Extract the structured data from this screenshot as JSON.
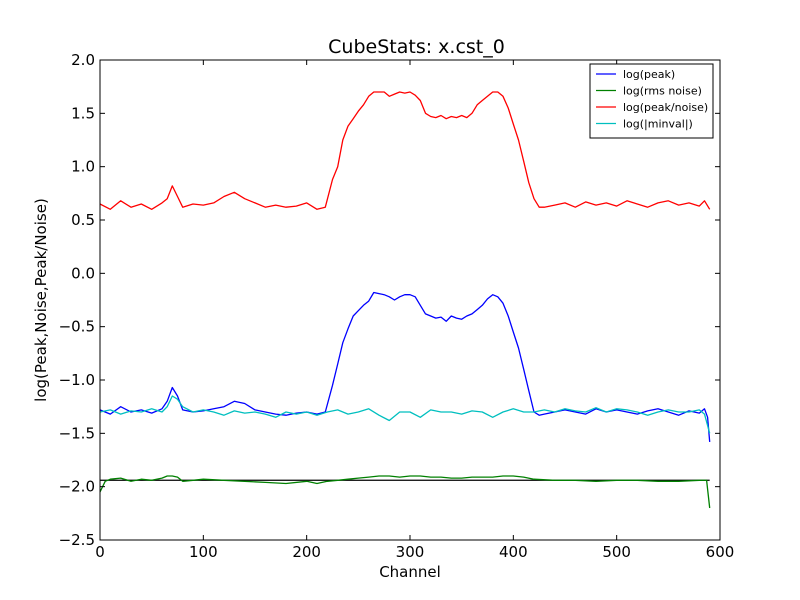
{
  "chart_data": {
    "type": "line",
    "title": "CubeStats: x.cst_0",
    "xlabel": "Channel",
    "ylabel": "log(Peak,Noise,Peak/Noise)",
    "xlim": [
      0,
      600
    ],
    "ylim": [
      -2.5,
      2.0
    ],
    "xticks": [
      0,
      100,
      200,
      300,
      400,
      500,
      600
    ],
    "yticks": [
      -2.5,
      -2.0,
      -1.5,
      -1.0,
      -0.5,
      0.0,
      0.5,
      1.0,
      1.5,
      2.0
    ],
    "xtick_labels": [
      "0",
      "100",
      "200",
      "300",
      "400",
      "500",
      "600"
    ],
    "ytick_labels": [
      "−2.5",
      "−2.0",
      "−1.5",
      "−1.0",
      "−0.5",
      "0.0",
      "0.5",
      "1.0",
      "1.5",
      "2.0"
    ],
    "grid": false,
    "legend_position": "top-right",
    "reference_lines": [
      {
        "y": -1.94,
        "x_range": [
          0,
          590
        ],
        "color": "#000000"
      }
    ],
    "series": [
      {
        "name": "log(peak)",
        "color": "#0000ff",
        "x": [
          0,
          10,
          20,
          30,
          40,
          50,
          60,
          65,
          70,
          75,
          80,
          90,
          100,
          110,
          120,
          130,
          140,
          150,
          160,
          170,
          180,
          190,
          200,
          210,
          218,
          225,
          230,
          235,
          240,
          245,
          250,
          255,
          260,
          265,
          270,
          275,
          280,
          285,
          290,
          295,
          300,
          305,
          310,
          315,
          320,
          325,
          330,
          335,
          340,
          345,
          350,
          355,
          360,
          365,
          370,
          375,
          380,
          385,
          390,
          395,
          400,
          405,
          410,
          415,
          420,
          425,
          430,
          440,
          450,
          460,
          470,
          480,
          490,
          500,
          510,
          520,
          530,
          540,
          550,
          560,
          570,
          580,
          585,
          588,
          590
        ],
        "y": [
          -1.28,
          -1.32,
          -1.25,
          -1.3,
          -1.28,
          -1.31,
          -1.27,
          -1.2,
          -1.07,
          -1.15,
          -1.28,
          -1.3,
          -1.29,
          -1.27,
          -1.25,
          -1.2,
          -1.22,
          -1.28,
          -1.3,
          -1.32,
          -1.33,
          -1.31,
          -1.3,
          -1.32,
          -1.3,
          -1.05,
          -0.85,
          -0.65,
          -0.52,
          -0.4,
          -0.35,
          -0.3,
          -0.26,
          -0.18,
          -0.19,
          -0.2,
          -0.22,
          -0.25,
          -0.22,
          -0.2,
          -0.2,
          -0.22,
          -0.3,
          -0.38,
          -0.4,
          -0.42,
          -0.41,
          -0.45,
          -0.4,
          -0.42,
          -0.43,
          -0.4,
          -0.38,
          -0.34,
          -0.3,
          -0.24,
          -0.2,
          -0.22,
          -0.28,
          -0.4,
          -0.55,
          -0.7,
          -0.9,
          -1.1,
          -1.3,
          -1.33,
          -1.32,
          -1.3,
          -1.28,
          -1.3,
          -1.32,
          -1.27,
          -1.3,
          -1.28,
          -1.3,
          -1.32,
          -1.29,
          -1.27,
          -1.3,
          -1.33,
          -1.29,
          -1.31,
          -1.27,
          -1.35,
          -1.58
        ]
      },
      {
        "name": "log(rms noise)",
        "color": "#008000",
        "x": [
          0,
          5,
          10,
          20,
          30,
          40,
          50,
          60,
          65,
          70,
          75,
          80,
          90,
          100,
          120,
          140,
          160,
          180,
          200,
          210,
          220,
          230,
          240,
          250,
          260,
          270,
          280,
          290,
          300,
          310,
          320,
          330,
          340,
          350,
          360,
          370,
          380,
          390,
          400,
          410,
          420,
          440,
          460,
          480,
          500,
          520,
          540,
          560,
          580,
          587,
          590
        ],
        "y": [
          -2.05,
          -1.95,
          -1.93,
          -1.92,
          -1.95,
          -1.93,
          -1.94,
          -1.92,
          -1.9,
          -1.9,
          -1.91,
          -1.95,
          -1.94,
          -1.93,
          -1.94,
          -1.95,
          -1.96,
          -1.97,
          -1.95,
          -1.97,
          -1.95,
          -1.94,
          -1.93,
          -1.92,
          -1.91,
          -1.9,
          -1.9,
          -1.91,
          -1.9,
          -1.9,
          -1.91,
          -1.91,
          -1.92,
          -1.92,
          -1.91,
          -1.91,
          -1.91,
          -1.9,
          -1.9,
          -1.91,
          -1.93,
          -1.94,
          -1.94,
          -1.95,
          -1.94,
          -1.94,
          -1.95,
          -1.95,
          -1.94,
          -1.94,
          -2.2
        ]
      },
      {
        "name": "log(peak/noise)",
        "color": "#ff0000",
        "x": [
          0,
          10,
          20,
          30,
          40,
          50,
          60,
          65,
          70,
          75,
          80,
          90,
          100,
          110,
          120,
          130,
          140,
          150,
          160,
          170,
          180,
          190,
          200,
          210,
          218,
          225,
          230,
          235,
          240,
          245,
          250,
          255,
          260,
          265,
          270,
          275,
          280,
          285,
          290,
          295,
          300,
          305,
          310,
          315,
          320,
          325,
          330,
          335,
          340,
          345,
          350,
          355,
          360,
          365,
          370,
          375,
          380,
          385,
          390,
          395,
          400,
          405,
          410,
          415,
          420,
          425,
          430,
          440,
          450,
          460,
          470,
          480,
          490,
          500,
          510,
          520,
          530,
          540,
          550,
          560,
          570,
          580,
          585,
          590
        ],
        "y": [
          0.65,
          0.6,
          0.68,
          0.62,
          0.65,
          0.6,
          0.66,
          0.7,
          0.82,
          0.72,
          0.62,
          0.65,
          0.64,
          0.66,
          0.72,
          0.76,
          0.7,
          0.66,
          0.62,
          0.64,
          0.62,
          0.63,
          0.66,
          0.6,
          0.62,
          0.88,
          1.0,
          1.25,
          1.38,
          1.45,
          1.52,
          1.58,
          1.66,
          1.7,
          1.7,
          1.7,
          1.66,
          1.68,
          1.7,
          1.69,
          1.7,
          1.67,
          1.62,
          1.5,
          1.47,
          1.46,
          1.48,
          1.45,
          1.47,
          1.46,
          1.48,
          1.46,
          1.5,
          1.58,
          1.62,
          1.66,
          1.7,
          1.7,
          1.66,
          1.55,
          1.4,
          1.25,
          1.05,
          0.85,
          0.7,
          0.62,
          0.62,
          0.64,
          0.66,
          0.62,
          0.67,
          0.64,
          0.66,
          0.63,
          0.68,
          0.65,
          0.62,
          0.66,
          0.68,
          0.64,
          0.66,
          0.63,
          0.68,
          0.6
        ]
      },
      {
        "name": "log(|minval|)",
        "color": "#00bfbf",
        "x": [
          0,
          10,
          20,
          30,
          40,
          50,
          60,
          65,
          70,
          75,
          80,
          90,
          100,
          110,
          120,
          130,
          140,
          150,
          160,
          170,
          180,
          190,
          200,
          210,
          220,
          230,
          240,
          250,
          260,
          270,
          280,
          290,
          300,
          310,
          320,
          330,
          340,
          350,
          360,
          370,
          380,
          390,
          400,
          410,
          420,
          430,
          440,
          450,
          460,
          470,
          480,
          490,
          500,
          510,
          520,
          530,
          540,
          550,
          560,
          570,
          580,
          585,
          590
        ],
        "y": [
          -1.3,
          -1.28,
          -1.32,
          -1.29,
          -1.3,
          -1.27,
          -1.3,
          -1.25,
          -1.15,
          -1.18,
          -1.25,
          -1.3,
          -1.28,
          -1.3,
          -1.33,
          -1.29,
          -1.31,
          -1.3,
          -1.32,
          -1.35,
          -1.3,
          -1.32,
          -1.3,
          -1.33,
          -1.3,
          -1.28,
          -1.32,
          -1.3,
          -1.27,
          -1.33,
          -1.38,
          -1.3,
          -1.3,
          -1.35,
          -1.28,
          -1.3,
          -1.3,
          -1.32,
          -1.29,
          -1.3,
          -1.35,
          -1.3,
          -1.27,
          -1.3,
          -1.3,
          -1.28,
          -1.3,
          -1.27,
          -1.29,
          -1.3,
          -1.26,
          -1.3,
          -1.27,
          -1.28,
          -1.3,
          -1.33,
          -1.3,
          -1.28,
          -1.3,
          -1.3,
          -1.28,
          -1.32,
          -1.5
        ]
      }
    ]
  }
}
